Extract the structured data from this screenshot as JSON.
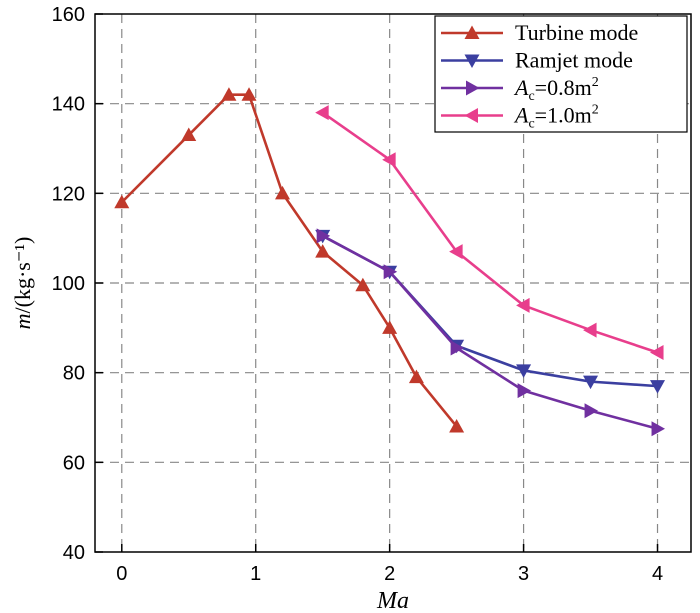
{
  "chart_data": {
    "type": "line",
    "title": "",
    "xlabel": "Ma",
    "ylabel_prefix": "m",
    "ylabel": "m/(kg·s⁻¹)",
    "xlim": [
      -0.2,
      4.25
    ],
    "ylim": [
      40,
      160
    ],
    "xticks": [
      0,
      1,
      2,
      3,
      4
    ],
    "yticks": [
      40,
      60,
      80,
      100,
      120,
      140,
      160
    ],
    "grid": true,
    "legend_position": "top-right",
    "series": [
      {
        "name": "Turbine mode",
        "legend_label": "Turbine mode",
        "color": "#c0392b",
        "marker": "triangle-up",
        "x": [
          0,
          0.5,
          0.8,
          0.95,
          1.2,
          1.5,
          1.8,
          2.0,
          2.2,
          2.5
        ],
        "y": [
          118,
          133,
          142,
          142,
          120,
          107,
          99.5,
          90,
          79,
          68
        ]
      },
      {
        "name": "Ramjet mode",
        "legend_label": "Ramjet mode",
        "color": "#3b3fa0",
        "marker": "triangle-down",
        "x": [
          1.5,
          2.0,
          2.5,
          3.0,
          3.5,
          4.0
        ],
        "y": [
          110.5,
          102.5,
          86,
          80.5,
          78,
          77
        ]
      },
      {
        "name": "Ac=0.8m2",
        "legend_italic": "A",
        "legend_sub": "c",
        "legend_rest": "=0.8m",
        "legend_sup": "2",
        "color": "#7030a0",
        "marker": "triangle-right",
        "x": [
          1.5,
          2.0,
          2.5,
          3.0,
          3.5,
          4.0
        ],
        "y": [
          110.5,
          102.5,
          85.5,
          76,
          71.5,
          67.5
        ]
      },
      {
        "name": "Ac=1.0m2",
        "legend_italic": "A",
        "legend_sub": "c",
        "legend_rest": "=1.0m",
        "legend_sup": "2",
        "color": "#e83e8c",
        "marker": "triangle-left",
        "x": [
          1.5,
          2.0,
          2.5,
          3.0,
          3.5,
          4.0
        ],
        "y": [
          138,
          127.5,
          107,
          95,
          89.5,
          84.5
        ]
      }
    ]
  }
}
